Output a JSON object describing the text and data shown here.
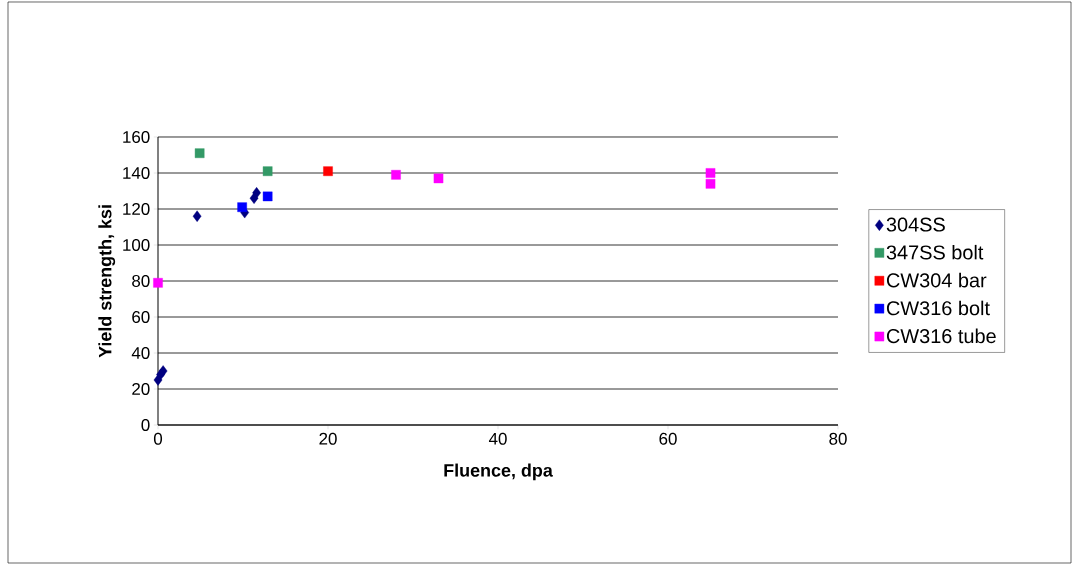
{
  "chart_data": {
    "type": "scatter",
    "xlabel": "Fluence, dpa",
    "ylabel": "Yield strength, ksi",
    "xlim": [
      0,
      80
    ],
    "xticks": [
      0,
      20,
      40,
      60,
      80
    ],
    "ylim": [
      0,
      160
    ],
    "yticks": [
      0,
      20,
      40,
      60,
      80,
      100,
      120,
      140,
      160
    ],
    "grid": "y",
    "legend": "right",
    "series": [
      {
        "name": "304SS",
        "color": "#000080",
        "marker": "diamond",
        "x": [
          0,
          0.3,
          0.6,
          4.6,
          10.2,
          11.3,
          11.6
        ],
        "values": [
          25,
          28,
          30,
          116,
          118,
          126,
          129
        ]
      },
      {
        "name": "347SS bolt",
        "color": "#339966",
        "marker": "square",
        "x": [
          4.9,
          12.9
        ],
        "values": [
          151,
          141
        ]
      },
      {
        "name": "CW304 bar",
        "color": "#ff0000",
        "marker": "square",
        "x": [
          20
        ],
        "values": [
          141
        ]
      },
      {
        "name": "CW316 bolt",
        "color": "#0000ff",
        "marker": "square",
        "x": [
          9.9,
          12.9
        ],
        "values": [
          121,
          127
        ]
      },
      {
        "name": "CW316 tube",
        "color": "#ff00ff",
        "marker": "square",
        "x": [
          0,
          28,
          33,
          65,
          65
        ],
        "values": [
          79,
          139,
          137,
          140,
          134
        ]
      }
    ]
  }
}
